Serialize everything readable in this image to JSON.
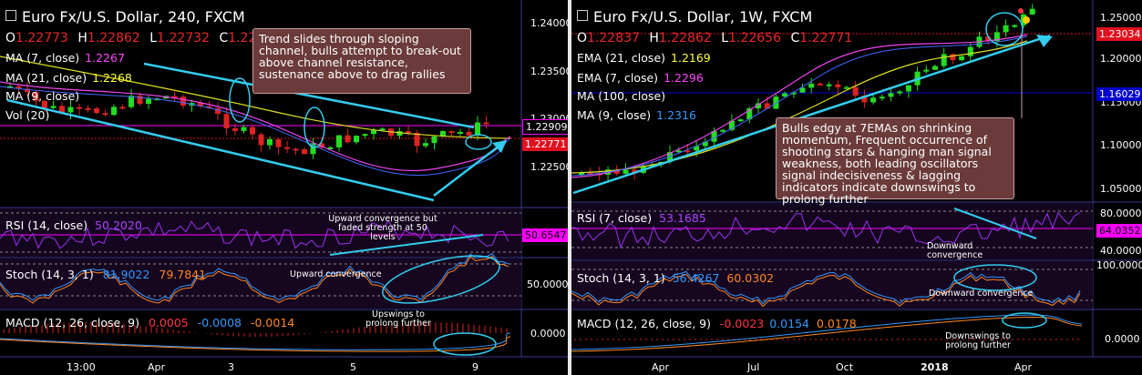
{
  "left": {
    "title": "Euro Fx/U.S. Dollar, 240, FXCM",
    "ohlc": {
      "o_label": "O",
      "o": "1.22773",
      "h_label": "H",
      "h": "1.22862",
      "l_label": "L",
      "l": "1.22732",
      "c_label": "C",
      "c": "1.22771"
    },
    "indicators": [
      {
        "label": "MA (7, close)",
        "value": "1.2267",
        "color": "#ff44ff"
      },
      {
        "label": "MA (21, close)",
        "value": "1.2268",
        "color": "#ffff33"
      },
      {
        "label": "MA (9, close)",
        "value": "",
        "color": "#5577ff"
      },
      {
        "label": "Vol (20)",
        "value": "",
        "color": "#ffffff"
      }
    ],
    "callout": "Trend slides through sloping channel, bulls attempt to break-out above channel resistance, sustenance above to drag rallies",
    "price_ticks": [
      "1.24000",
      "1.23500",
      "1.23000",
      "1.22500"
    ],
    "price_tags": {
      "upper": "1.22909",
      "current": "1.22771"
    },
    "rsi": {
      "label": "RSI (14, close)",
      "value": "50.2020",
      "tag": "50.6547",
      "note": "Upward convergence but faded strength at 50 levels"
    },
    "stoch": {
      "label": "Stoch (14, 3, 1)",
      "k": "81.9022",
      "d": "79.7841",
      "tick": "50.0000",
      "note": "Upward convergence"
    },
    "macd": {
      "label": "MACD (12, 26, close, 9)",
      "v1": "0.0005",
      "v2": "-0.0008",
      "v3": "-0.0014",
      "tick": "0.0000",
      "note": "Upswings to prolong further"
    },
    "x_labels": [
      "13:00",
      "Apr",
      "3",
      "5",
      "9"
    ]
  },
  "right": {
    "title": "Euro Fx/U.S. Dollar, 1W, FXCM",
    "ohlc": {
      "o_label": "O",
      "o": "1.22837",
      "h_label": "H",
      "h": "1.22862",
      "l_label": "L",
      "l": "1.22656",
      "c_label": "C",
      "c": "1.22771"
    },
    "indicators": [
      {
        "label": "EMA (21, close)",
        "value": "1.2169",
        "color": "#ffff33"
      },
      {
        "label": "EMA (7, close)",
        "value": "1.2296",
        "color": "#ff44ff"
      },
      {
        "label": "MA (100, close)",
        "value": "",
        "color": "#8888ff"
      },
      {
        "label": "MA (9, close)",
        "value": "1.2316",
        "color": "#5577ff"
      }
    ],
    "callout": "Bulls edgy at 7EMAs on shrinking momentum, Frequent occurrence of shooting stars & hanging man signal weakness, both leading oscillators signal indecisiveness & lagging indicators indicate downswings to prolong further",
    "price_ticks": [
      "1.25000",
      "1.20000",
      "1.15000",
      "1.10000",
      "1.05000"
    ],
    "price_tags": {
      "current": "1.23034",
      "ma100": "1.16029"
    },
    "rsi": {
      "label": "RSI (7, close)",
      "value": "53.1685",
      "tag": "64.0352",
      "tick_hi": "80.0000",
      "tick_lo": "40.0000",
      "note": "Downward convergence"
    },
    "stoch": {
      "label": "Stoch (14, 3, 1)",
      "k": "56.4267",
      "d": "60.0302",
      "tick": "100.0000",
      "note": "Downward convergence"
    },
    "macd": {
      "label": "MACD (12, 26, close, 9)",
      "v1": "-0.0023",
      "v2": "0.0154",
      "v3": "0.0178",
      "tick": "0.0000",
      "note": "Downswings to prolong further"
    },
    "x_labels": [
      "Apr",
      "Jul",
      "Oct",
      "2018",
      "Apr"
    ]
  }
}
